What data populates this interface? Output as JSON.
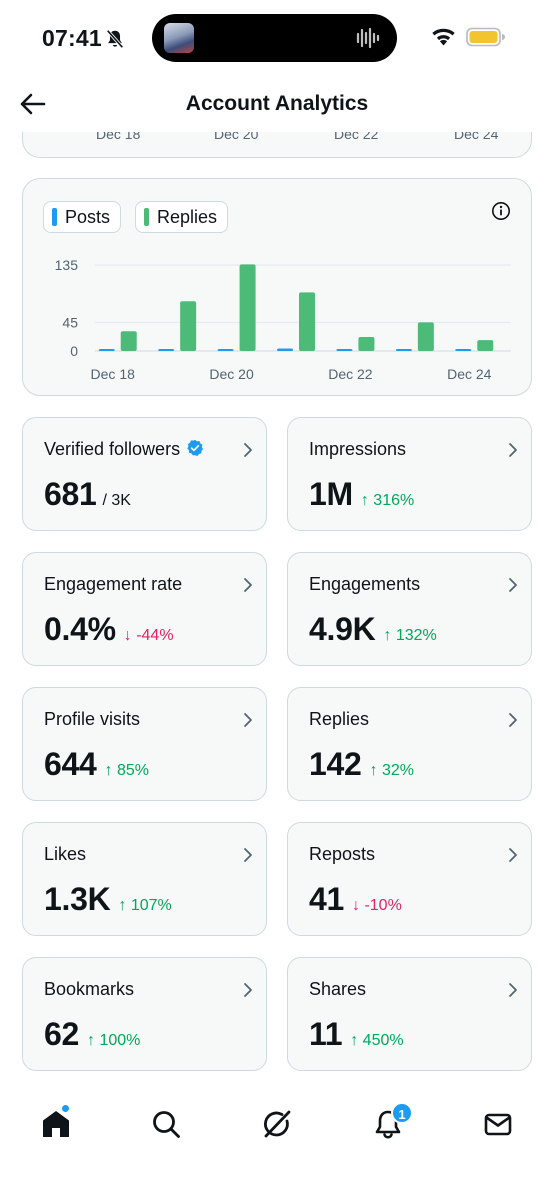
{
  "status": {
    "time": "07:41"
  },
  "header": {
    "title": "Account Analytics",
    "back_icon": "arrow-left-icon"
  },
  "prev_chart": {
    "labels": [
      "Dec 18",
      "Dec 20",
      "Dec 22",
      "Dec 24"
    ]
  },
  "legend": {
    "posts": "Posts",
    "replies": "Replies"
  },
  "colors": {
    "posts": "#1d9bf0",
    "replies": "#4cbb78",
    "up": "#00a85a",
    "down": "#e0245e"
  },
  "chart_data": {
    "type": "bar",
    "categories": [
      "Dec 18",
      "Dec 19",
      "Dec 20",
      "Dec 21",
      "Dec 22",
      "Dec 23",
      "Dec 24"
    ],
    "x_tick_labels": [
      "Dec 18",
      "Dec 20",
      "Dec 22",
      "Dec 24"
    ],
    "series": [
      {
        "name": "Posts",
        "values": [
          1,
          1,
          1,
          4,
          1,
          0,
          1
        ]
      },
      {
        "name": "Replies",
        "values": [
          31,
          78,
          136,
          92,
          22,
          45,
          17
        ]
      }
    ],
    "y_ticks": [
      0,
      45,
      135
    ],
    "ylim": [
      0,
      140
    ]
  },
  "metrics": [
    {
      "label": "Verified followers",
      "value": "681",
      "sub": "/ 3K",
      "verified": true
    },
    {
      "label": "Impressions",
      "value": "1M",
      "change": "↑ 316%",
      "dir": "up"
    },
    {
      "label": "Engagement rate",
      "value": "0.4%",
      "change": "↓ -44%",
      "dir": "down"
    },
    {
      "label": "Engagements",
      "value": "4.9K",
      "change": "↑ 132%",
      "dir": "up"
    },
    {
      "label": "Profile visits",
      "value": "644",
      "change": "↑ 85%",
      "dir": "up"
    },
    {
      "label": "Replies",
      "value": "142",
      "change": "↑ 32%",
      "dir": "up"
    },
    {
      "label": "Likes",
      "value": "1.3K",
      "change": "↑ 107%",
      "dir": "up"
    },
    {
      "label": "Reposts",
      "value": "41",
      "change": "↓ -10%",
      "dir": "down"
    },
    {
      "label": "Bookmarks",
      "value": "62",
      "change": "↑ 100%",
      "dir": "up"
    },
    {
      "label": "Shares",
      "value": "11",
      "change": "↑ 450%",
      "dir": "up"
    }
  ],
  "nav": {
    "notifications_badge": "1",
    "items": [
      "home-icon",
      "search-icon",
      "grok-icon",
      "notifications-icon",
      "messages-icon"
    ]
  }
}
